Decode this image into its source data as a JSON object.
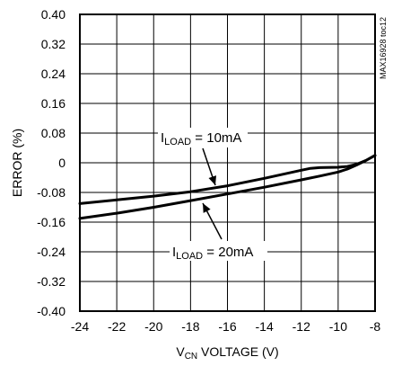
{
  "chart_data": {
    "type": "line",
    "xlabel": {
      "prefix": "V",
      "sub": "CN",
      "suffix": " VOLTAGE (V)"
    },
    "ylabel": "ERROR (%)",
    "xlim": [
      -24,
      -8
    ],
    "ylim": [
      -0.4,
      0.4
    ],
    "x_ticks": [
      -24,
      -22,
      -20,
      -18,
      -16,
      -14,
      -12,
      -10,
      -8
    ],
    "x_tick_labels": [
      "-24",
      "-22",
      "-20",
      "-18",
      "-16",
      "-14",
      "-12",
      "-10",
      "-8"
    ],
    "y_ticks": [
      0.4,
      0.32,
      0.24,
      0.16,
      0.08,
      0,
      -0.08,
      -0.16,
      -0.24,
      -0.32,
      -0.4
    ],
    "y_tick_labels": [
      "0.40",
      "0.32",
      "0.24",
      "0.16",
      "0.08",
      "0",
      "-0.08",
      "-0.16",
      "-0.24",
      "-0.32",
      "-0.40"
    ],
    "grid": true,
    "side_note": "MAX16928 toc12",
    "series": [
      {
        "label": {
          "prefix": "I",
          "sub": "LOAD",
          "suffix": " = 10mA"
        },
        "x": [
          -24,
          -22,
          -20,
          -18,
          -16,
          -14,
          -12,
          -11.5,
          -11,
          -10,
          -9.5,
          -9,
          -8.5,
          -8
        ],
        "y": [
          -0.11,
          -0.1,
          -0.09,
          -0.078,
          -0.062,
          -0.042,
          -0.02,
          -0.015,
          -0.013,
          -0.012,
          -0.01,
          -0.004,
          0.006,
          0.02
        ]
      },
      {
        "label": {
          "prefix": "I",
          "sub": "LOAD",
          "suffix": " = 20mA"
        },
        "x": [
          -24,
          -22,
          -20,
          -18,
          -16,
          -14,
          -12,
          -11,
          -10,
          -9.5,
          -9,
          -8.5,
          -8
        ],
        "y": [
          -0.15,
          -0.136,
          -0.12,
          -0.102,
          -0.084,
          -0.066,
          -0.046,
          -0.036,
          -0.025,
          -0.017,
          -0.006,
          0.006,
          0.02
        ]
      }
    ]
  }
}
